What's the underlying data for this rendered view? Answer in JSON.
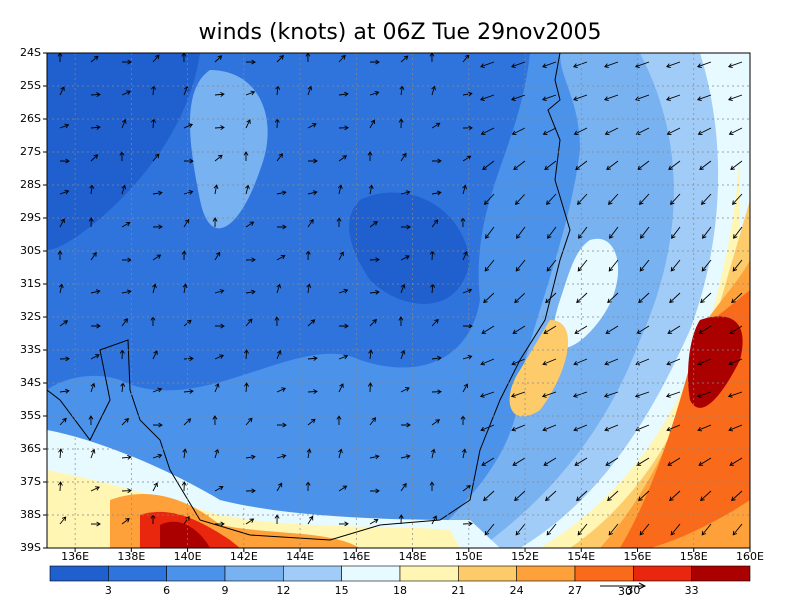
{
  "title": "winds (knots) at 06Z Tue 29nov2005",
  "map": {
    "lon_range": [
      135,
      160
    ],
    "lat_range": [
      24,
      39
    ],
    "lon_ticks": [
      {
        "value": 136,
        "label": "136E"
      },
      {
        "value": 138,
        "label": "138E"
      },
      {
        "value": 140,
        "label": "140E"
      },
      {
        "value": 142,
        "label": "142E"
      },
      {
        "value": 144,
        "label": "144E"
      },
      {
        "value": 146,
        "label": "146E"
      },
      {
        "value": 148,
        "label": "148E"
      },
      {
        "value": 150,
        "label": "150E"
      },
      {
        "value": 152,
        "label": "152E"
      },
      {
        "value": 154,
        "label": "154E"
      },
      {
        "value": 156,
        "label": "156E"
      },
      {
        "value": 158,
        "label": "158E"
      },
      {
        "value": 160,
        "label": "160E"
      }
    ],
    "lat_ticks": [
      {
        "value": 24,
        "label": "24S"
      },
      {
        "value": 25,
        "label": "25S"
      },
      {
        "value": 26,
        "label": "26S"
      },
      {
        "value": 27,
        "label": "27S"
      },
      {
        "value": 28,
        "label": "28S"
      },
      {
        "value": 29,
        "label": "29S"
      },
      {
        "value": 30,
        "label": "30S"
      },
      {
        "value": 31,
        "label": "31S"
      },
      {
        "value": 32,
        "label": "32S"
      },
      {
        "value": 33,
        "label": "33S"
      },
      {
        "value": 34,
        "label": "34S"
      },
      {
        "value": 35,
        "label": "35S"
      },
      {
        "value": 36,
        "label": "36S"
      },
      {
        "value": 37,
        "label": "37S"
      },
      {
        "value": 38,
        "label": "38S"
      },
      {
        "value": 39,
        "label": "39S"
      }
    ]
  },
  "colorbar": {
    "range": [
      0,
      36
    ],
    "levels": [
      3,
      6,
      9,
      12,
      15,
      18,
      21,
      24,
      27,
      30,
      33
    ],
    "colors": [
      "#1f5fce",
      "#2f74dc",
      "#4b93ea",
      "#78b2f1",
      "#a0ccf7",
      "#e6faff",
      "#fff6b4",
      "#fecb6b",
      "#fea13a",
      "#f96a1a",
      "#e9260e",
      "#aa0000"
    ]
  },
  "reference_vector": {
    "label": "30"
  }
}
